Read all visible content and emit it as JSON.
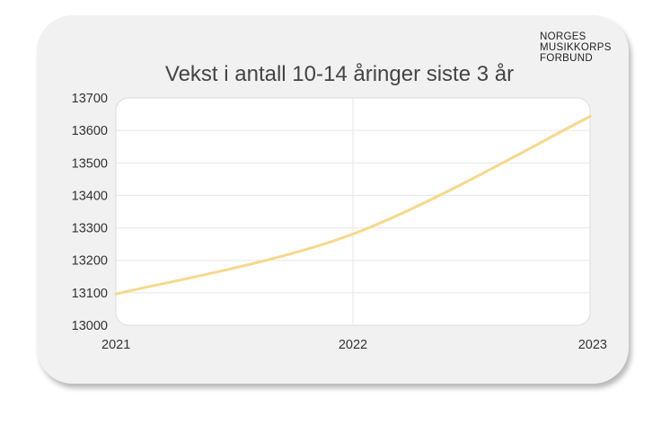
{
  "logo": {
    "lines": [
      "NORGES",
      "MUSIKKORPS",
      "FORBUND"
    ]
  },
  "chart_data": {
    "type": "line",
    "title": "Vekst i antall 10-14 åringer siste 3 år",
    "xlabel": "",
    "ylabel": "",
    "x": [
      "2021",
      "2022",
      "2023"
    ],
    "series": [
      {
        "values": [
          13096,
          13281,
          13643
        ]
      }
    ],
    "ylim": [
      13000,
      13700
    ],
    "yticks": [
      13000,
      13100,
      13200,
      13300,
      13400,
      13500,
      13600,
      13700
    ],
    "grid": true,
    "line_color": "#f7d88a"
  }
}
